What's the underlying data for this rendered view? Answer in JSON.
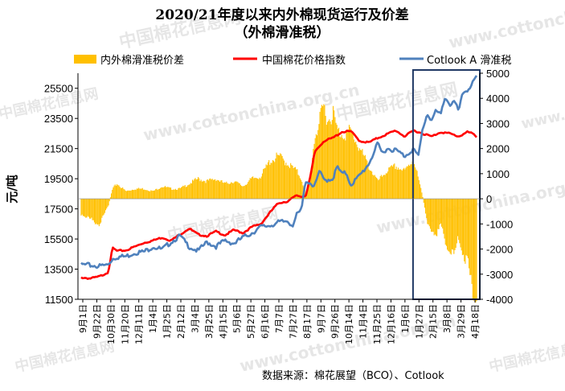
{
  "chart_data": {
    "type": "bar+line",
    "title": "2020/21年度以来内外棉现货运行及价差",
    "subtitle": "（外棉滑准税）",
    "ylabel": "元/吨",
    "source": "数据来源：棉花展望（BCO）、Cotlook",
    "watermarks": [
      "中国棉花信息网",
      "www.cottonchina.org.cn"
    ],
    "legend": {
      "placement": "top",
      "entries": [
        "内外棉滑准税价差",
        "中国棉花价格指数",
        "Cotlook A 滑准税"
      ]
    },
    "colors": {
      "spread": "#FFC000",
      "index": "#FF0000",
      "cotlook": "#4F81BD",
      "highlight_box": "#1F3864"
    },
    "y_left": {
      "ticks": [
        11500,
        13500,
        15500,
        17500,
        19500,
        21500,
        23500,
        25500
      ],
      "range": [
        11500,
        26500
      ]
    },
    "y_right": {
      "ticks": [
        -4000,
        -3000,
        -2000,
        -1000,
        0,
        1000,
        2000,
        3000,
        4000,
        5000
      ],
      "range": [
        -4000,
        5000
      ]
    },
    "x_labels": [
      "9月1日",
      "9月22日",
      "10月30日",
      "11月20日",
      "12月11日",
      "1月4日",
      "1月25日",
      "2月12日",
      "3月4日",
      "3月25日",
      "4月15日",
      "5月6日",
      "5月27日",
      "6月16日",
      "7月7日",
      "7月27日",
      "8月17日",
      "9月7日",
      "9月26日",
      "10月14日",
      "11月4日",
      "11月25日",
      "12月16日",
      "1月6日",
      "1月27日",
      "2月15日",
      "3月8日",
      "3月29日",
      "4月18日"
    ],
    "index_points": [
      [
        0,
        12950
      ],
      [
        2,
        12880
      ],
      [
        4,
        13000
      ],
      [
        6,
        13300
      ],
      [
        7,
        14900
      ],
      [
        8,
        14700
      ],
      [
        10,
        14750
      ],
      [
        12,
        15000
      ],
      [
        14,
        15250
      ],
      [
        16,
        15400
      ],
      [
        18,
        15600
      ],
      [
        20,
        15400
      ],
      [
        22,
        15800
      ],
      [
        24,
        16200
      ],
      [
        26,
        15800
      ],
      [
        28,
        15700
      ],
      [
        30,
        16000
      ],
      [
        32,
        15750
      ],
      [
        34,
        16100
      ],
      [
        36,
        15900
      ],
      [
        38,
        16300
      ],
      [
        40,
        16500
      ],
      [
        42,
        17250
      ],
      [
        43,
        17600
      ],
      [
        44,
        17900
      ],
      [
        46,
        18000
      ],
      [
        48,
        18400
      ],
      [
        49,
        18300
      ],
      [
        50,
        18400
      ],
      [
        51,
        19600
      ],
      [
        52,
        21300
      ],
      [
        54,
        22000
      ],
      [
        56,
        22200
      ],
      [
        58,
        22600
      ],
      [
        60,
        22650
      ],
      [
        62,
        22000
      ],
      [
        64,
        21900
      ],
      [
        66,
        22200
      ],
      [
        68,
        22450
      ],
      [
        70,
        22700
      ],
      [
        72,
        22300
      ],
      [
        74,
        22700
      ],
      [
        76,
        22500
      ],
      [
        78,
        22300
      ],
      [
        80,
        22600
      ],
      [
        82,
        22500
      ],
      [
        84,
        22300
      ],
      [
        86,
        22600
      ],
      [
        87,
        22500
      ],
      [
        88,
        22300
      ]
    ],
    "cotlook_points": [
      [
        0,
        13800
      ],
      [
        2,
        13750
      ],
      [
        4,
        13700
      ],
      [
        6,
        13800
      ],
      [
        7,
        14200
      ],
      [
        8,
        14300
      ],
      [
        10,
        14350
      ],
      [
        12,
        14600
      ],
      [
        14,
        14650
      ],
      [
        16,
        15000
      ],
      [
        18,
        14800
      ],
      [
        20,
        15300
      ],
      [
        22,
        15700
      ],
      [
        24,
        15000
      ],
      [
        26,
        14700
      ],
      [
        28,
        15300
      ],
      [
        30,
        15000
      ],
      [
        32,
        15400
      ],
      [
        34,
        15200
      ],
      [
        36,
        15600
      ],
      [
        38,
        15900
      ],
      [
        40,
        16300
      ],
      [
        42,
        16400
      ],
      [
        44,
        16600
      ],
      [
        46,
        16700
      ],
      [
        47,
        16400
      ],
      [
        48,
        17100
      ],
      [
        49,
        17400
      ],
      [
        50,
        19400
      ],
      [
        51,
        19200
      ],
      [
        52,
        19000
      ],
      [
        53,
        20000
      ],
      [
        54,
        19400
      ],
      [
        56,
        19500
      ],
      [
        57,
        20300
      ],
      [
        58,
        19800
      ],
      [
        59,
        19900
      ],
      [
        60,
        19100
      ],
      [
        62,
        19700
      ],
      [
        64,
        20500
      ],
      [
        66,
        21800
      ],
      [
        67,
        21200
      ],
      [
        68,
        21500
      ],
      [
        70,
        21400
      ],
      [
        72,
        21000
      ],
      [
        74,
        21500
      ],
      [
        75,
        20900
      ],
      [
        76,
        22800
      ],
      [
        77,
        23800
      ],
      [
        78,
        23400
      ],
      [
        79,
        24000
      ],
      [
        80,
        23700
      ],
      [
        81,
        25000
      ],
      [
        82,
        24400
      ],
      [
        83,
        24600
      ],
      [
        84,
        24000
      ],
      [
        85,
        25200
      ],
      [
        86,
        25400
      ],
      [
        87,
        25800
      ],
      [
        88,
        26200
      ]
    ],
    "spread_points": [
      [
        0,
        -600
      ],
      [
        2,
        -800
      ],
      [
        4,
        -1000
      ],
      [
        5,
        -700
      ],
      [
        6,
        -300
      ],
      [
        7,
        400
      ],
      [
        8,
        600
      ],
      [
        10,
        300
      ],
      [
        12,
        400
      ],
      [
        14,
        400
      ],
      [
        16,
        300
      ],
      [
        18,
        500
      ],
      [
        20,
        400
      ],
      [
        22,
        400
      ],
      [
        24,
        600
      ],
      [
        26,
        800
      ],
      [
        28,
        700
      ],
      [
        30,
        800
      ],
      [
        32,
        600
      ],
      [
        34,
        700
      ],
      [
        36,
        500
      ],
      [
        38,
        800
      ],
      [
        40,
        900
      ],
      [
        42,
        1500
      ],
      [
        44,
        1700
      ],
      [
        46,
        1400
      ],
      [
        48,
        1100
      ],
      [
        49,
        800
      ],
      [
        50,
        200
      ],
      [
        51,
        1000
      ],
      [
        52,
        2500
      ],
      [
        53,
        3000
      ],
      [
        54,
        3700
      ],
      [
        55,
        3100
      ],
      [
        56,
        3500
      ],
      [
        57,
        2700
      ],
      [
        58,
        2600
      ],
      [
        59,
        2600
      ],
      [
        60,
        2700
      ],
      [
        62,
        2000
      ],
      [
        64,
        1300
      ],
      [
        66,
        700
      ],
      [
        68,
        1100
      ],
      [
        70,
        1300
      ],
      [
        72,
        1100
      ],
      [
        74,
        1600
      ],
      [
        76,
        100
      ],
      [
        77,
        -1000
      ],
      [
        78,
        -1200
      ],
      [
        79,
        -1400
      ],
      [
        80,
        -1100
      ],
      [
        81,
        -1600
      ],
      [
        82,
        -2100
      ],
      [
        83,
        -2300
      ],
      [
        84,
        -1500
      ],
      [
        85,
        -2200
      ],
      [
        86,
        -2500
      ],
      [
        87,
        -3600
      ],
      [
        88,
        -3900
      ]
    ],
    "highlight_range": [
      76,
      88
    ]
  }
}
